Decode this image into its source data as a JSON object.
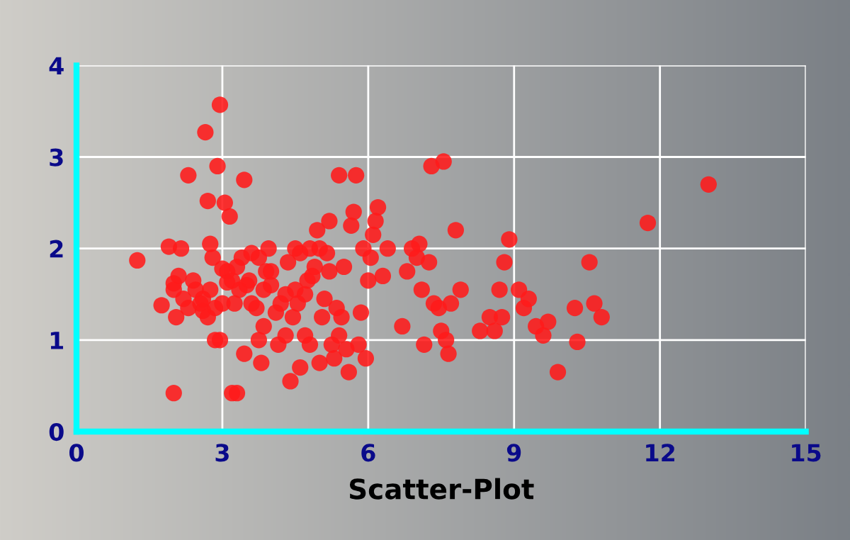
{
  "chart_data": {
    "type": "scatter",
    "xlabel": "Scatter-Plot",
    "xlim": [
      0,
      15
    ],
    "xticks": [
      0,
      3,
      6,
      9,
      12,
      15
    ],
    "ylim": [
      0,
      4
    ],
    "yticks": [
      0,
      1,
      2,
      3,
      4
    ],
    "grid": true,
    "marker": "circle",
    "series": [
      {
        "color": "#ff1a1a",
        "x": [
          1.25,
          1.75,
          1.9,
          2.0,
          2.05,
          2.1,
          2.2,
          2.15,
          2.0,
          2.3,
          2.4,
          2.45,
          2.55,
          2.6,
          2.65,
          2.7,
          2.75,
          2.8,
          2.85,
          2.9,
          2.95,
          2.95,
          3.0,
          3.05,
          3.1,
          3.15,
          3.2,
          3.3,
          3.25,
          3.35,
          3.4,
          3.45,
          3.45,
          3.55,
          3.6,
          3.7,
          3.75,
          3.8,
          3.85,
          3.9,
          3.95,
          4.0,
          4.1,
          4.15,
          4.3,
          4.35,
          4.4,
          4.45,
          4.5,
          4.55,
          4.6,
          4.7,
          4.75,
          4.8,
          4.85,
          4.9,
          4.95,
          5.0,
          5.05,
          5.1,
          5.15,
          5.2,
          5.25,
          5.3,
          5.35,
          5.4,
          5.45,
          5.5,
          5.55,
          5.6,
          5.65,
          5.7,
          5.75,
          5.8,
          5.85,
          5.9,
          5.95,
          6.0,
          6.05,
          6.1,
          6.15,
          6.2,
          6.3,
          6.4,
          6.7,
          6.8,
          6.9,
          7.0,
          7.05,
          7.1,
          7.15,
          7.25,
          7.3,
          7.35,
          7.45,
          7.5,
          7.55,
          7.6,
          7.65,
          7.7,
          7.8,
          7.9,
          8.3,
          8.5,
          8.6,
          8.7,
          8.75,
          8.8,
          8.9,
          9.1,
          9.2,
          9.3,
          9.45,
          9.6,
          9.7,
          9.9,
          10.25,
          10.3,
          10.55,
          10.65,
          10.8,
          11.75,
          13.0,
          2.0,
          2.3,
          2.6,
          2.7,
          2.75,
          2.85,
          3.0,
          3.1,
          3.2,
          3.3,
          3.5,
          3.6,
          3.75,
          3.85,
          4.0,
          4.2,
          4.5,
          4.7,
          4.8,
          5.0,
          5.2,
          4.3,
          4.6,
          5.4
        ],
        "values": [
          1.87,
          1.38,
          2.02,
          1.55,
          1.25,
          1.7,
          1.45,
          2.0,
          0.42,
          2.8,
          1.65,
          1.55,
          1.4,
          1.32,
          3.27,
          2.52,
          2.05,
          1.9,
          1.35,
          2.9,
          1.0,
          3.57,
          1.78,
          2.5,
          1.63,
          2.35,
          0.42,
          0.42,
          1.4,
          1.55,
          1.9,
          2.75,
          0.85,
          1.65,
          1.95,
          1.35,
          1.0,
          0.75,
          1.55,
          1.75,
          2.0,
          1.6,
          1.3,
          0.95,
          1.5,
          1.85,
          0.55,
          1.25,
          2.0,
          1.4,
          1.95,
          1.05,
          1.65,
          0.95,
          1.7,
          1.8,
          2.2,
          0.75,
          1.25,
          1.45,
          1.95,
          2.3,
          0.95,
          0.8,
          1.35,
          2.8,
          1.25,
          1.8,
          0.9,
          0.65,
          2.25,
          2.4,
          2.8,
          0.95,
          1.3,
          2.0,
          0.8,
          1.65,
          1.9,
          2.15,
          2.3,
          2.45,
          1.7,
          2.0,
          1.15,
          1.75,
          2.0,
          1.9,
          2.05,
          1.55,
          0.95,
          1.85,
          2.9,
          1.4,
          1.35,
          1.1,
          2.95,
          1.0,
          0.85,
          1.4,
          2.2,
          1.55,
          1.1,
          1.25,
          1.1,
          1.55,
          1.25,
          1.85,
          2.1,
          1.55,
          1.35,
          1.45,
          1.15,
          1.05,
          1.2,
          0.65,
          1.35,
          0.98,
          1.85,
          1.4,
          1.25,
          2.28,
          2.7,
          1.62,
          1.35,
          1.45,
          1.25,
          1.55,
          1.0,
          1.4,
          1.75,
          1.65,
          1.8,
          1.6,
          1.4,
          1.9,
          1.15,
          1.75,
          1.4,
          1.55,
          1.5,
          2.0,
          2.0,
          1.75,
          1.05,
          0.7,
          1.05
        ]
      }
    ]
  }
}
